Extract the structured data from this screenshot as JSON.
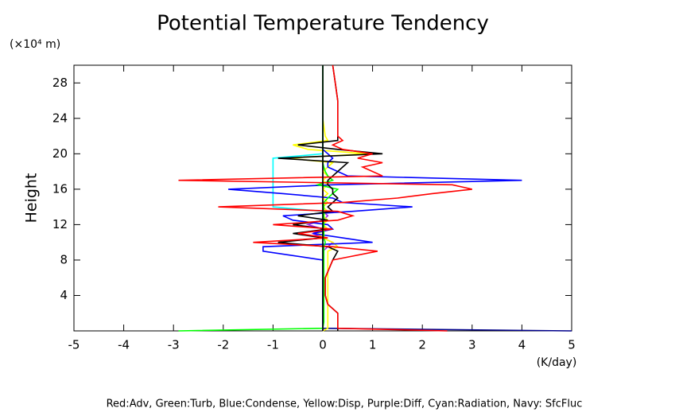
{
  "chart_data": {
    "type": "line",
    "title": "Potential Temperature Tendency",
    "y_label": "Height",
    "y_unit": "(×10⁴ m)",
    "x_unit": "(K/day)",
    "legend_text": "Red:Adv, Green:Turb, Blue:Condense, Yellow:Disp, Purple:Diff, Cyan:Radiation, Navy: SfcFluc",
    "xlim": [
      -5,
      5
    ],
    "xticks": [
      -5,
      -4,
      -3,
      -2,
      -1,
      0,
      1,
      2,
      3,
      4,
      5
    ],
    "ylim": [
      0,
      30
    ],
    "yticks": [
      4,
      8,
      12,
      16,
      20,
      24,
      28
    ],
    "heights": [
      0,
      0.3,
      1,
      2,
      3,
      4,
      6,
      8,
      9,
      9.5,
      10,
      10.5,
      11,
      11.5,
      12,
      12.5,
      13,
      13.5,
      14,
      14.5,
      15,
      15.5,
      16,
      16.5,
      17,
      17.5,
      18,
      18.5,
      19,
      19.5,
      20,
      20.5,
      21,
      21.5,
      22,
      24,
      26,
      28,
      30
    ],
    "series": [
      {
        "color": "#00008b",
        "values": [
          5,
          0,
          0,
          0,
          0,
          0,
          0,
          0,
          0,
          0,
          0,
          0,
          0,
          0,
          0,
          0,
          0,
          0,
          0,
          0,
          0,
          0,
          0,
          0,
          0,
          0,
          0,
          0,
          0,
          0,
          0,
          0,
          0,
          0,
          0,
          0,
          0,
          0,
          0
        ]
      },
      {
        "color": "#00ffff",
        "values": [
          0,
          0,
          0,
          0,
          0,
          0,
          0,
          0,
          0,
          0,
          0,
          0,
          0,
          0,
          0,
          0,
          0,
          0,
          -1,
          -1,
          -1,
          -1,
          -1,
          -1,
          -1,
          -1,
          -1,
          -1,
          -1,
          -1,
          0,
          0,
          0,
          0,
          0,
          0,
          0,
          0,
          0
        ]
      },
      {
        "color": "#a020f0",
        "values": [
          0,
          0,
          0,
          0,
          0,
          0,
          0,
          0,
          0,
          0.1,
          0.2,
          0,
          -0.2,
          0,
          -0.3,
          0,
          0.1,
          0,
          0,
          0,
          0,
          0,
          0,
          0,
          0,
          0,
          0,
          0,
          0,
          0,
          0,
          0,
          0,
          0,
          0,
          0,
          0,
          0,
          0
        ]
      },
      {
        "color": "#ffff00",
        "values": [
          0,
          0.1,
          0.1,
          0.1,
          0.1,
          0.1,
          0.1,
          0.1,
          0.1,
          0.3,
          0.2,
          0,
          -0.1,
          0.1,
          0,
          0.1,
          0,
          0.1,
          0,
          0.1,
          0,
          0.1,
          0,
          0.1,
          0,
          0.1,
          0,
          0.1,
          0.2,
          -0.7,
          0.9,
          -0.3,
          -0.6,
          0.1,
          0.05,
          0,
          0,
          0,
          0
        ]
      },
      {
        "color": "#0000ff",
        "values": [
          0,
          0,
          0,
          0,
          0,
          0,
          0,
          0,
          -1.2,
          -1.2,
          1,
          0.4,
          -0.2,
          0.2,
          0.1,
          -0.6,
          -0.8,
          0.6,
          1.8,
          0.4,
          0.2,
          -0.8,
          -1.9,
          0.2,
          4,
          0.5,
          0.3,
          0.1,
          0.1,
          0.2,
          0.1,
          0,
          0,
          0,
          0,
          0,
          0,
          0,
          0
        ]
      },
      {
        "color": "#00ff00",
        "values": [
          -2.9,
          0,
          0.02,
          0.02,
          0.02,
          0.02,
          0.02,
          0.02,
          0.02,
          0.02,
          0.05,
          0.02,
          0.02,
          0.02,
          0.02,
          0.02,
          0.02,
          0.02,
          0.02,
          0.02,
          0.1,
          0.2,
          0.3,
          -0.1,
          0.2,
          0.1,
          0.05,
          0.02,
          0,
          0,
          0,
          0,
          0,
          0,
          0,
          0,
          0,
          0,
          0
        ]
      },
      {
        "color": "#000000",
        "values": [
          0.3,
          0.3,
          0.3,
          0.3,
          0.1,
          0.05,
          0.05,
          0.2,
          0.3,
          0.1,
          -0.9,
          0,
          -0.6,
          0.1,
          -0.6,
          0.1,
          -0.5,
          0.2,
          0.1,
          0.2,
          0.3,
          0.2,
          0.2,
          0.1,
          0.1,
          0.2,
          0.3,
          0.4,
          0.5,
          -0.9,
          1.2,
          0.3,
          -0.5,
          0.3,
          0.3,
          0.3,
          0.3,
          0.25,
          0.2
        ]
      },
      {
        "color": "#ff0000",
        "values": [
          2.5,
          0.3,
          0.3,
          0.3,
          0.1,
          0.05,
          0.05,
          0.2,
          1.1,
          0.2,
          -1.4,
          0.1,
          -0.5,
          0.2,
          -1,
          0.3,
          0.6,
          0.3,
          -2.1,
          0.4,
          1.5,
          2.2,
          3,
          2.6,
          -2.9,
          1.2,
          1,
          0.8,
          1.2,
          0.7,
          1,
          0.4,
          0.2,
          0.4,
          0.3,
          0.3,
          0.3,
          0.25,
          0.2
        ]
      }
    ]
  }
}
